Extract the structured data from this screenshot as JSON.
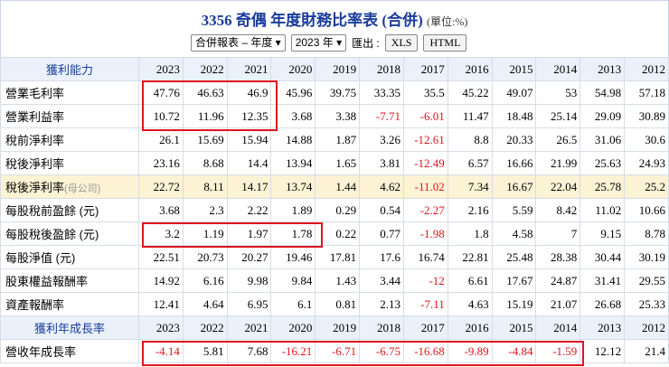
{
  "header": {
    "title": "3356 奇偶 年度財務比率表 (合併)",
    "unit": "(單位:%)"
  },
  "controls": {
    "report_select": "合併報表 – 年度",
    "year_select": "2023 年",
    "export_label": "匯出 :",
    "buttons": [
      "XLS",
      "HTML"
    ]
  },
  "sections": [
    {
      "title": "獲利能力",
      "years": [
        "2023",
        "2022",
        "2021",
        "2020",
        "2019",
        "2018",
        "2017",
        "2016",
        "2015",
        "2014",
        "2013",
        "2012"
      ],
      "rows": [
        {
          "label": "營業毛利率",
          "values": [
            47.76,
            46.63,
            46.9,
            45.96,
            39.75,
            33.35,
            35.5,
            45.22,
            49.07,
            53,
            54.98,
            57.18
          ]
        },
        {
          "label": "營業利益率",
          "values": [
            10.72,
            11.96,
            12.35,
            3.68,
            3.38,
            -7.71,
            -6.01,
            11.47,
            18.48,
            25.14,
            29.09,
            30.89
          ]
        },
        {
          "label": "稅前淨利率",
          "values": [
            26.1,
            15.69,
            15.94,
            14.88,
            1.87,
            3.26,
            -12.61,
            8.8,
            20.33,
            26.5,
            31.06,
            30.6
          ]
        },
        {
          "label": "稅後淨利率",
          "values": [
            23.16,
            8.68,
            14.4,
            13.94,
            1.65,
            3.81,
            -12.49,
            6.57,
            16.66,
            21.99,
            25.63,
            24.93
          ]
        },
        {
          "label": "稅後淨利率",
          "note": "(母公司)",
          "highlight": true,
          "values": [
            22.72,
            8.11,
            14.17,
            13.74,
            1.44,
            4.62,
            -11.02,
            7.34,
            16.67,
            22.04,
            25.78,
            25.2
          ]
        },
        {
          "label": "每股稅前盈餘 (元)",
          "values": [
            3.68,
            2.3,
            2.22,
            1.89,
            0.29,
            0.54,
            -2.27,
            2.16,
            5.59,
            8.42,
            11.02,
            10.66
          ]
        },
        {
          "label": "每股稅後盈餘 (元)",
          "values": [
            3.2,
            1.19,
            1.97,
            1.78,
            0.22,
            0.77,
            -1.98,
            1.8,
            4.58,
            7,
            9.15,
            8.78
          ]
        },
        {
          "label": "每股淨值 (元)",
          "values": [
            22.51,
            20.73,
            20.27,
            19.46,
            17.81,
            17.6,
            16.74,
            22.81,
            25.48,
            28.38,
            30.44,
            30.19
          ]
        },
        {
          "label": "股東權益報酬率",
          "values": [
            14.92,
            6.16,
            9.98,
            9.84,
            1.43,
            3.44,
            -12,
            6.61,
            17.67,
            24.87,
            31.41,
            29.55
          ]
        },
        {
          "label": "資產報酬率",
          "values": [
            12.41,
            4.64,
            6.95,
            6.1,
            0.81,
            2.13,
            -7.11,
            4.63,
            15.19,
            21.07,
            26.68,
            25.33
          ]
        }
      ]
    },
    {
      "title": "獲利年成長率",
      "years": [
        "2023",
        "2022",
        "2021",
        "2020",
        "2019",
        "2018",
        "2017",
        "2016",
        "2015",
        "2014",
        "2013",
        "2012"
      ],
      "rows": [
        {
          "label": "營收年成長率",
          "values": [
            -4.14,
            5.81,
            7.68,
            -16.21,
            -6.71,
            -6.75,
            -16.68,
            -9.89,
            -4.84,
            -1.59,
            12.12,
            21.4
          ]
        }
      ]
    }
  ]
}
